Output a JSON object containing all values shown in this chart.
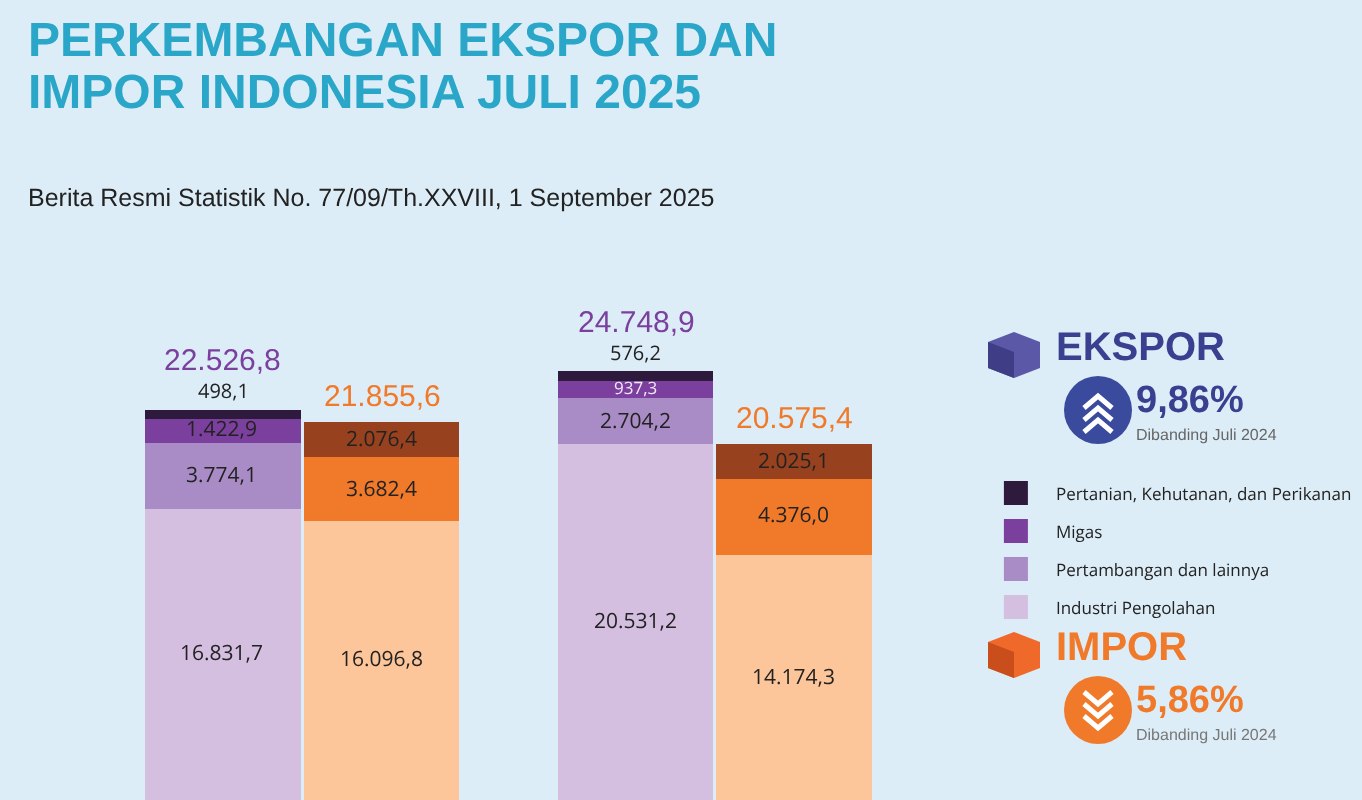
{
  "chart_data": {
    "type": "bar",
    "stacked": true,
    "title": "PERKEMBANGAN EKSPOR DAN IMPOR INDONESIA JULI 2025",
    "subtitle": "Berita Resmi Statistik No. 77/09/Th.XXVIII, 1 September 2025",
    "categories": [
      null,
      null,
      null,
      null
    ],
    "series": [
      {
        "name": "Industri Pengolahan",
        "color": "#d5bfe0",
        "values": [
          16831.7,
          null,
          20531.2,
          null
        ],
        "value_labels": [
          "16.831,7",
          null,
          "20.531,2",
          null
        ]
      },
      {
        "name": "Pertambangan dan lainnya",
        "color": "#a98bc6",
        "values": [
          3774.1,
          null,
          2704.2,
          null
        ],
        "value_labels": [
          "3.774,1",
          null,
          "2.704,2",
          null
        ]
      },
      {
        "name": "Migas",
        "color": "#7b3f9e",
        "values": [
          1422.9,
          null,
          937.3,
          null
        ],
        "value_labels": [
          "1.422,9",
          null,
          "937,3",
          null
        ]
      },
      {
        "name": "Pertanian, Kehutanan, dan Perikanan",
        "color": "#2e1a3c",
        "values": [
          498.1,
          null,
          576.2,
          null
        ],
        "value_labels": [
          "498,1",
          null,
          "576,2",
          null
        ]
      },
      {
        "color": "#fdc59a",
        "values": [
          null,
          16096.8,
          null,
          14174.3
        ],
        "value_labels": [
          null,
          "16.096,8",
          null,
          "14.174,3"
        ]
      },
      {
        "color": "#f07a2a",
        "values": [
          null,
          3682.4,
          null,
          4376.0
        ],
        "value_labels": [
          null,
          "3.682,4",
          null,
          "4.376,0"
        ]
      },
      {
        "color": "#98411f",
        "values": [
          null,
          2076.4,
          null,
          2025.1
        ],
        "value_labels": [
          null,
          "2.076,4",
          null,
          "2.025,1"
        ]
      }
    ],
    "totals": [
      "22.526,8",
      "21.855,6",
      "24.748,9",
      "20.575,4"
    ],
    "legend": "right",
    "annotations": [
      "EKSPOR",
      "9,86%",
      "Dibanding Juli 2024",
      "IMPOR",
      "5,86%",
      "Dibanding Juli 2024"
    ]
  }
}
